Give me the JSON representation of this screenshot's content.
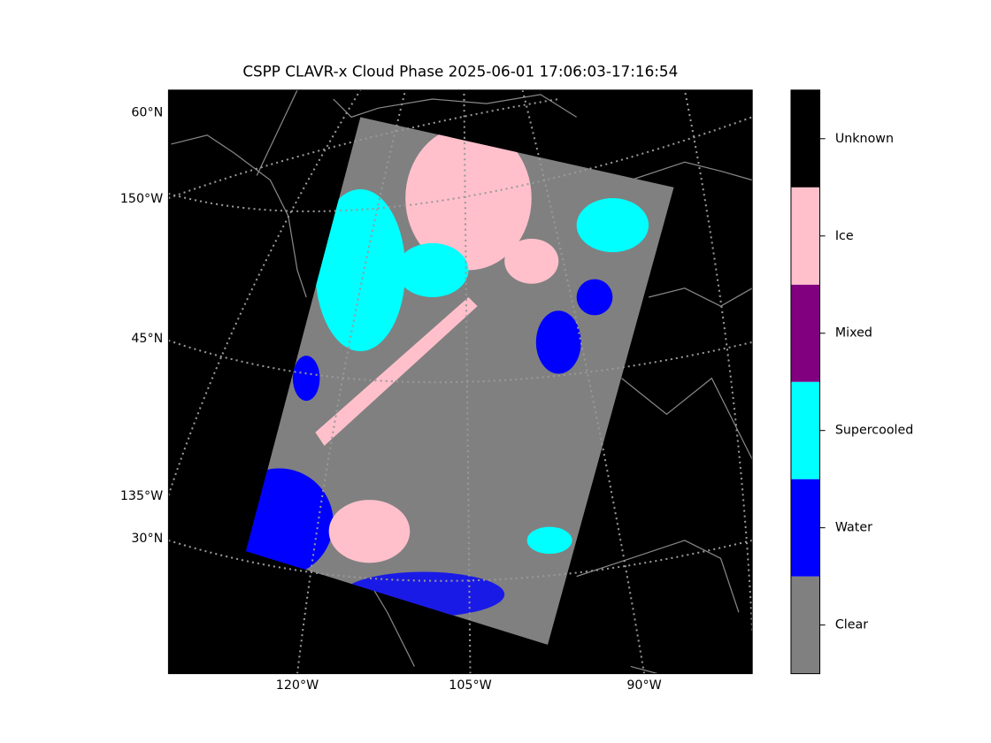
{
  "map": {
    "title": "CSPP CLAVR-x Cloud Phase 2025-06-01 17:06:03-17:16:54",
    "left_labels": [
      "60°N",
      "150°W",
      "45°N",
      "135°W",
      "30°N"
    ],
    "bottom_labels": [
      "120°W",
      "105°W",
      "90°W"
    ]
  },
  "colorbar": {
    "classes": [
      {
        "name": "Clear",
        "color": "#808080"
      },
      {
        "name": "Water",
        "color": "#0000ff"
      },
      {
        "name": "Supercooled",
        "color": "#00ffff"
      },
      {
        "name": "Mixed",
        "color": "#800080"
      },
      {
        "name": "Ice",
        "color": "#ffc0cb"
      },
      {
        "name": "Unknown",
        "color": "#000000"
      }
    ]
  }
}
